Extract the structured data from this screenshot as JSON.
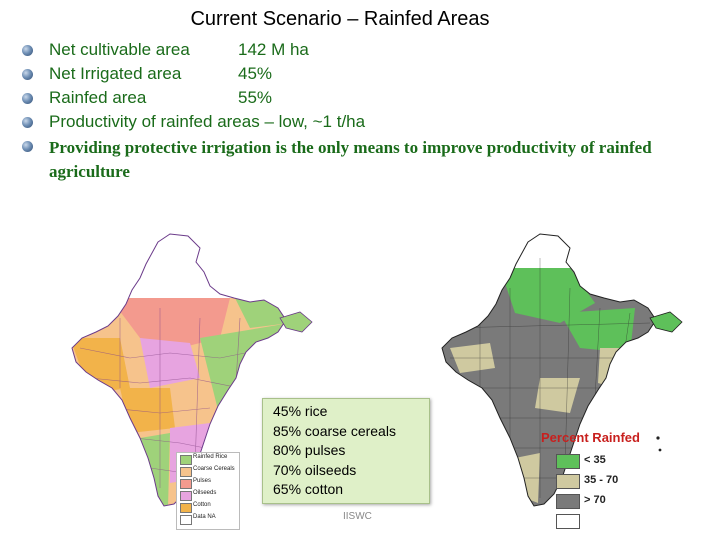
{
  "title": "Current Scenario – Rainfed Areas",
  "bullets": [
    {
      "label": "Net cultivable area",
      "value": "142 M ha"
    },
    {
      "label": "Net Irrigated area",
      "value": "45%"
    },
    {
      "label": "Rainfed area",
      "value": "55%"
    },
    {
      "label": "Productivity of rainfed areas – low, ~1 t/ha"
    },
    {
      "label": "Providing protective irrigation is the only means to improve productivity of rainfed agriculture"
    }
  ],
  "crop_legend": {
    "items": [
      {
        "label": "Rainfed Rice",
        "color": "#9fd27a"
      },
      {
        "label": "Coarse Cereals",
        "color": "#f6c38c"
      },
      {
        "label": "Pulses",
        "color": "#f39a8e"
      },
      {
        "label": "Oilseeds",
        "color": "#e7a4e0"
      },
      {
        "label": "Cotton",
        "color": "#f2b34a"
      },
      {
        "label": "Data NA",
        "color": "#ffffff"
      }
    ]
  },
  "crop_shares": [
    "45% rice",
    "85% coarse cereals",
    "80% pulses",
    "70% oilseeds",
    "65% cotton"
  ],
  "percent_rainfed": {
    "title": "Percent Rainfed",
    "items": [
      {
        "label": "< 35",
        "color": "#5ec05a"
      },
      {
        "label": "35 - 70",
        "color": "#cfc9a0"
      },
      {
        "label": "> 70",
        "color": "#7a7a7a"
      },
      {
        "label": "",
        "color": "#ffffff"
      }
    ]
  },
  "footer": "IISWC"
}
